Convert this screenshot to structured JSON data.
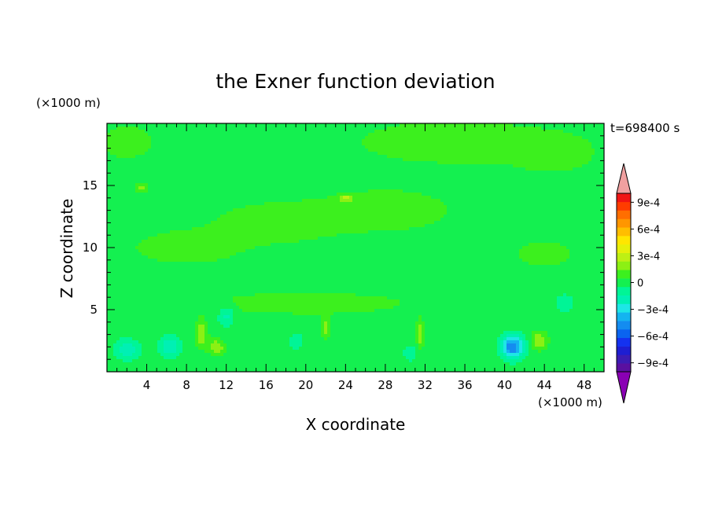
{
  "chart_data": {
    "type": "heatmap",
    "title": "the Exner function deviation",
    "xlabel": "X coordinate",
    "ylabel": "Z coordinate",
    "x_unit": "(×1000 m)",
    "y_unit": "(×1000 m)",
    "time_label": "t=698400 s",
    "xlim": [
      0,
      50
    ],
    "ylim": [
      0,
      20
    ],
    "x_ticks": [
      4,
      8,
      12,
      16,
      20,
      24,
      28,
      32,
      36,
      40,
      44,
      48
    ],
    "y_ticks": [
      5,
      10,
      15
    ],
    "colorbar": {
      "levels": [
        -0.0011,
        -0.001,
        -0.0009,
        -0.0008,
        -0.0007,
        -0.0006,
        -0.0005,
        -0.0004,
        -0.0003,
        -0.0002,
        -0.0001,
        0,
        0.0001,
        0.0002,
        0.0003,
        0.0004,
        0.0005,
        0.0006,
        0.0007,
        0.0008,
        0.0009,
        0.001,
        0.0011
      ],
      "colors": [
        "#8a00b4",
        "#5a10a0",
        "#3c1cb4",
        "#1e1ed2",
        "#1432f0",
        "#0a64f0",
        "#148cf0",
        "#14b4f0",
        "#1ee6e6",
        "#00f0b4",
        "#00f596",
        "#14f050",
        "#3cf01e",
        "#8cf014",
        "#bef014",
        "#e6f00a",
        "#ffe600",
        "#ffbe00",
        "#ff9600",
        "#ff6e00",
        "#ff3c00",
        "#f01414",
        "#f0a0a0"
      ],
      "tick_values": [
        0.0009,
        0.0006,
        0.0003,
        0,
        -0.0003,
        -0.0006,
        -0.0009
      ],
      "tick_labels": [
        "9e-4",
        "6e-4",
        "3e-4",
        "0",
        "−3e-4",
        "−6e-4",
        "−9e-4"
      ]
    },
    "features": [
      {
        "x": 17,
        "z": 12,
        "sx": 6,
        "sz": 1.6,
        "value": 0.00012
      },
      {
        "x": 8,
        "z": 10,
        "sx": 6,
        "sz": 1.5,
        "value": 0.0001
      },
      {
        "x": 28,
        "z": 13,
        "sx": 7,
        "sz": 1.8,
        "value": 0.00011
      },
      {
        "x": 35,
        "z": 18.5,
        "sx": 10,
        "sz": 1.8,
        "value": 0.00012
      },
      {
        "x": 45,
        "z": 17.5,
        "sx": 4,
        "sz": 1.5,
        "value": 0.0001
      },
      {
        "x": 2,
        "z": 18.5,
        "sx": 3,
        "sz": 1.5,
        "value": 0.0001
      },
      {
        "x": 44,
        "z": 9.5,
        "sx": 3,
        "sz": 1.2,
        "value": 0.0001
      },
      {
        "x": 20,
        "z": 5.5,
        "sx": 14,
        "sz": 1.2,
        "value": 8e-05
      },
      {
        "x": 2,
        "z": 1.8,
        "sx": 1.2,
        "sz": 0.8,
        "value": -0.00022
      },
      {
        "x": 6.3,
        "z": 2,
        "sx": 1.0,
        "sz": 0.8,
        "value": -0.00025
      },
      {
        "x": 12,
        "z": 4.5,
        "sx": 0.8,
        "sz": 0.8,
        "value": -0.0002
      },
      {
        "x": 19,
        "z": 2.5,
        "sx": 0.6,
        "sz": 0.6,
        "value": -0.00015
      },
      {
        "x": 30.5,
        "z": 1.5,
        "sx": 0.6,
        "sz": 0.6,
        "value": -0.00015
      },
      {
        "x": 40.8,
        "z": 2.0,
        "sx": 1.1,
        "sz": 0.9,
        "value": -0.00055
      },
      {
        "x": 46,
        "z": 5.5,
        "sx": 1.0,
        "sz": 0.8,
        "value": -0.00012
      },
      {
        "x": 9.5,
        "z": 3.0,
        "sx": 0.6,
        "sz": 1.0,
        "value": 0.00025
      },
      {
        "x": 11,
        "z": 2.0,
        "sx": 0.8,
        "sz": 0.6,
        "value": 0.00025
      },
      {
        "x": 22,
        "z": 3.5,
        "sx": 0.5,
        "sz": 0.8,
        "value": 0.0002
      },
      {
        "x": 31.5,
        "z": 3.0,
        "sx": 0.4,
        "sz": 1.0,
        "value": 0.00025
      },
      {
        "x": 43.5,
        "z": 2.5,
        "sx": 0.8,
        "sz": 0.7,
        "value": 0.00025
      },
      {
        "x": 24,
        "z": 14,
        "sx": 0.6,
        "sz": 0.3,
        "value": 0.00026
      },
      {
        "x": 3.5,
        "z": 14.8,
        "sx": 0.6,
        "sz": 0.3,
        "value": 0.00022
      }
    ]
  }
}
